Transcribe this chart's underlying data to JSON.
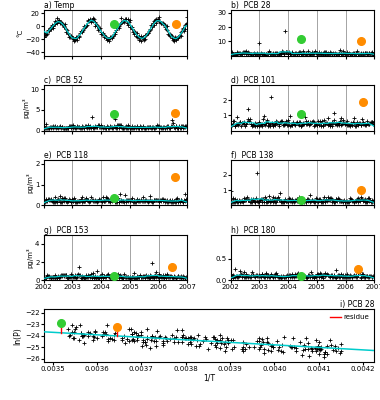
{
  "panels": [
    {
      "label": "a) Temp",
      "ylabel": "°C",
      "ylim": [
        -45,
        25
      ],
      "yticks": [
        20,
        0,
        -20,
        -40
      ],
      "green_x": 2004.45,
      "green_y": 3.0,
      "orange_x": 2006.6,
      "orange_y": 3.0
    },
    {
      "label": "b)  PCB 28",
      "ylabel": "",
      "ylim": [
        0,
        32
      ],
      "yticks": [
        10,
        20,
        30
      ],
      "green_x": 2004.45,
      "green_y": 11.5,
      "orange_x": 2006.55,
      "orange_y": 10.5
    },
    {
      "label": "c)  PCB 52",
      "ylabel": "pg/m³",
      "ylim": [
        0,
        11
      ],
      "yticks": [
        0,
        5,
        10
      ],
      "green_x": 2004.45,
      "green_y": 4.0,
      "orange_x": 2006.55,
      "orange_y": 4.3
    },
    {
      "label": "d)  PCB 101",
      "ylabel": "",
      "ylim": [
        0,
        3
      ],
      "yticks": [
        1,
        2
      ],
      "green_x": 2004.45,
      "green_y": 1.1,
      "orange_x": 2006.6,
      "orange_y": 1.85
    },
    {
      "label": "e)  PCB 118",
      "ylabel": "pg/m³",
      "ylim": [
        0,
        2.2
      ],
      "yticks": [
        0,
        1,
        2
      ],
      "green_x": 2004.45,
      "green_y": 0.38,
      "orange_x": 2006.55,
      "orange_y": 1.35
    },
    {
      "label": "f)  PCB 138",
      "ylabel": "",
      "ylim": [
        0,
        3
      ],
      "yticks": [
        1,
        2
      ],
      "green_x": 2004.45,
      "green_y": 0.38,
      "orange_x": 2006.55,
      "orange_y": 1.0
    },
    {
      "label": "g)  PCB 153",
      "ylabel": "pg/m³",
      "ylim": [
        0,
        5
      ],
      "yticks": [
        0,
        2,
        4
      ],
      "green_x": 2004.45,
      "green_y": 0.45,
      "orange_x": 2006.45,
      "orange_y": 1.5
    },
    {
      "label": "h)  PCB 180",
      "ylabel": "",
      "ylim": [
        0,
        1.05
      ],
      "yticks": [
        0,
        0.5
      ],
      "green_x": 2004.45,
      "green_y": 0.1,
      "orange_x": 2006.45,
      "orange_y": 0.27
    }
  ],
  "xmin": 2002.0,
  "xmax": 2007.0,
  "xticks": [
    2002,
    2003,
    2004,
    2005,
    2006,
    2007
  ],
  "year_lines": [
    2003,
    2004,
    2005,
    2006
  ],
  "green_dot_color": "#33cc33",
  "orange_dot_color": "#ff8c00",
  "cyan_color": "#00cccc",
  "bottom_panel": {
    "label": "i) PCB 28",
    "ylabel": "ln(P)",
    "xlabel": "1/T",
    "xlim": [
      0.00348,
      0.004225
    ],
    "ylim": [
      -26.3,
      -21.7
    ],
    "yticks": [
      -26,
      -25,
      -24,
      -23,
      -22
    ],
    "xticks": [
      0.0035,
      0.0036,
      0.0037,
      0.0038,
      0.0039,
      0.004,
      0.0041,
      0.0042
    ],
    "xtick_labels": [
      "0.0035",
      "0.0036",
      "0.0037",
      "0.0038",
      "0.0039",
      "0.0040",
      "0.0041",
      "0.0042"
    ],
    "fit_slope": -2200,
    "fit_intercept": -16.0,
    "green_x": 0.003518,
    "green_y": -22.85,
    "orange_x": 0.003645,
    "orange_y": -23.2,
    "residue_color": "red"
  }
}
